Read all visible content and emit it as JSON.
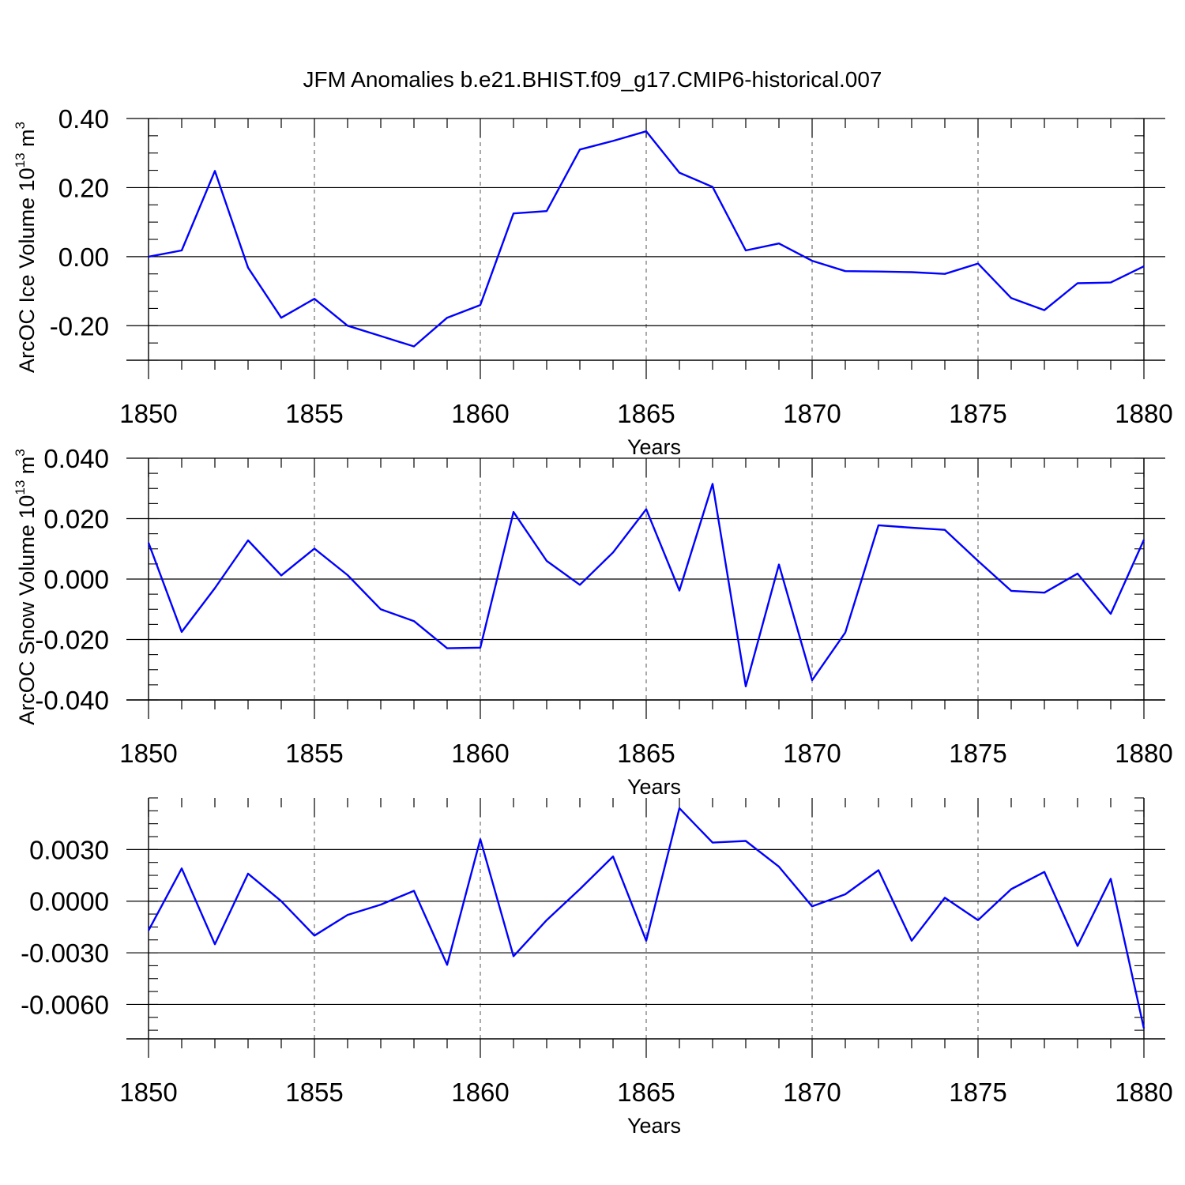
{
  "title": "JFM Anomalies b.e21.BHIST.f09_g17.CMIP6-historical.007",
  "line_color": "#0000ff",
  "chart_data": [
    {
      "type": "line",
      "ylabel_main": "ArcOC Ice Volume 10",
      "ylabel_exp": "13",
      "ylabel_unit": " m",
      "ylabel_unit_exp": "3",
      "xlabel": "Years",
      "xlim": [
        1850,
        1880
      ],
      "ylim": [
        -0.3,
        0.4
      ],
      "yticks": [
        -0.2,
        0.0,
        0.2,
        0.4
      ],
      "ytick_labels": [
        "-0.20",
        "0.00",
        "0.20",
        "0.40"
      ],
      "xticks": [
        1850,
        1855,
        1860,
        1865,
        1870,
        1875,
        1880
      ],
      "xtick_labels": [
        "1850",
        "1855",
        "1860",
        "1865",
        "1870",
        "1875",
        "1880"
      ],
      "grid": "vertical dashed at major x ticks",
      "x": [
        1850,
        1851,
        1852,
        1853,
        1854,
        1855,
        1856,
        1857,
        1858,
        1859,
        1860,
        1861,
        1862,
        1863,
        1864,
        1865,
        1866,
        1867,
        1868,
        1869,
        1870,
        1871,
        1872,
        1873,
        1874,
        1875,
        1876,
        1877,
        1878,
        1879,
        1880
      ],
      "y": [
        0.0,
        0.018,
        0.248,
        -0.032,
        -0.177,
        -0.122,
        -0.2,
        -0.23,
        -0.26,
        -0.177,
        -0.14,
        0.125,
        0.132,
        0.31,
        0.335,
        0.363,
        0.243,
        0.202,
        0.018,
        0.038,
        -0.012,
        -0.042,
        -0.043,
        -0.045,
        -0.05,
        -0.02,
        -0.12,
        -0.155,
        -0.077,
        -0.075,
        -0.028
      ]
    },
    {
      "type": "line",
      "ylabel_main": "ArcOC Snow Volume 10",
      "ylabel_exp": "13",
      "ylabel_unit": " m",
      "ylabel_unit_exp": "3",
      "xlabel": "Years",
      "xlim": [
        1850,
        1880
      ],
      "ylim": [
        -0.04,
        0.04
      ],
      "yticks": [
        -0.04,
        -0.02,
        0.0,
        0.02,
        0.04
      ],
      "ytick_labels": [
        "-0.040",
        "-0.020",
        "0.000",
        "0.020",
        "0.040"
      ],
      "xticks": [
        1850,
        1855,
        1860,
        1865,
        1870,
        1875,
        1880
      ],
      "xtick_labels": [
        "1850",
        "1855",
        "1860",
        "1865",
        "1870",
        "1875",
        "1880"
      ],
      "grid": "vertical dashed at major x ticks",
      "x": [
        1850,
        1851,
        1852,
        1853,
        1854,
        1855,
        1856,
        1857,
        1858,
        1859,
        1860,
        1861,
        1862,
        1863,
        1864,
        1865,
        1866,
        1867,
        1868,
        1869,
        1870,
        1871,
        1872,
        1873,
        1874,
        1875,
        1876,
        1877,
        1878,
        1879,
        1880
      ],
      "y": [
        0.012,
        -0.0175,
        -0.003,
        0.0128,
        0.0012,
        0.0101,
        0.0013,
        -0.01,
        -0.0139,
        -0.0229,
        -0.0227,
        0.0222,
        0.006,
        -0.0019,
        0.0088,
        0.0231,
        -0.0038,
        0.0315,
        -0.0355,
        0.0048,
        -0.0335,
        -0.0177,
        0.0178,
        0.017,
        0.0163,
        0.006,
        -0.0039,
        -0.0045,
        0.0018,
        -0.0115,
        0.013
      ]
    },
    {
      "type": "line",
      "ylabel_main": "",
      "ylabel_exp": "",
      "ylabel_unit": "",
      "ylabel_unit_exp": "",
      "xlabel": "Years",
      "xlim": [
        1850,
        1880
      ],
      "ylim": [
        -0.008,
        0.006
      ],
      "yticks": [
        -0.006,
        -0.003,
        0.0,
        0.003
      ],
      "ytick_labels": [
        "-0.0060",
        "-0.0030",
        "0.0000",
        "0.0030"
      ],
      "xticks": [
        1850,
        1855,
        1860,
        1865,
        1870,
        1875,
        1880
      ],
      "xtick_labels": [
        "1850",
        "1855",
        "1860",
        "1865",
        "1870",
        "1875",
        "1880"
      ],
      "grid": "vertical dashed at major x ticks",
      "x": [
        1850,
        1851,
        1852,
        1853,
        1854,
        1855,
        1856,
        1857,
        1858,
        1859,
        1860,
        1861,
        1862,
        1863,
        1864,
        1865,
        1866,
        1867,
        1868,
        1869,
        1870,
        1871,
        1872,
        1873,
        1874,
        1875,
        1876,
        1877,
        1878,
        1879,
        1880
      ],
      "y": [
        -0.0017,
        0.0019,
        -0.0025,
        0.0016,
        0.0,
        -0.002,
        -0.0008,
        -0.0002,
        0.0006,
        -0.0037,
        0.0036,
        -0.0032,
        -0.0011,
        0.0007,
        0.0026,
        -0.0023,
        0.0054,
        0.0034,
        0.0035,
        0.002,
        -0.0003,
        0.0004,
        0.0018,
        -0.0023,
        0.0002,
        -0.0011,
        0.0007,
        0.0017,
        -0.0026,
        0.0013,
        -0.0074
      ]
    }
  ]
}
